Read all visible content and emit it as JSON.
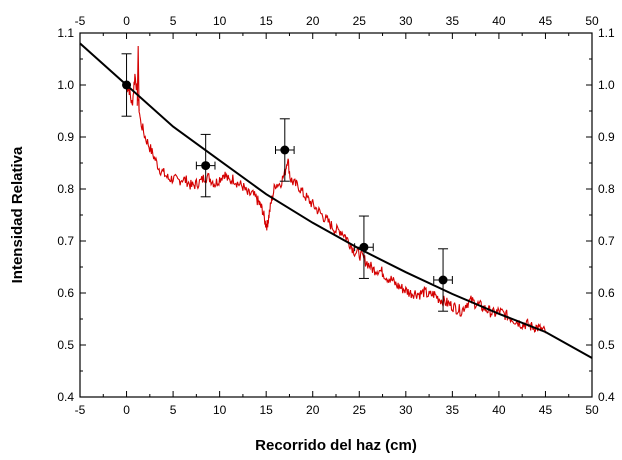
{
  "chart_data": {
    "type": "scatter",
    "title": "",
    "xlabel": "Recorrido del haz (cm)",
    "ylabel": "Intensidad Relativa",
    "xlim": [
      -5,
      50
    ],
    "ylim": [
      0.4,
      1.1
    ],
    "x_ticks": [
      -5,
      0,
      5,
      10,
      15,
      20,
      25,
      30,
      35,
      40,
      45,
      50
    ],
    "x_tick_labels": [
      "-5",
      "0",
      "5",
      "10",
      "15",
      "20",
      "25",
      "30",
      "35",
      "40",
      "45",
      "50"
    ],
    "y_ticks": [
      0.4,
      0.5,
      0.6,
      0.7,
      0.8,
      0.9,
      1.0,
      1.1
    ],
    "y_tick_labels": [
      "0.4",
      "0.5",
      "0.6",
      "0.7",
      "0.8",
      "0.9",
      "1.0",
      "1.1"
    ],
    "grid": false,
    "colors": {
      "measured": "#d40000",
      "fit": "#000000",
      "points": "#000000"
    },
    "series": [
      {
        "kind": "line",
        "x": [
          0.0,
          0.3,
          0.6,
          0.9,
          1.2,
          1.5,
          2,
          2.5,
          3,
          3.5,
          4,
          4.5,
          5,
          5.5,
          6,
          6.5,
          7,
          7.5,
          8,
          8.5,
          9,
          9.5,
          10,
          10.5,
          11,
          11.5,
          12,
          12.5,
          13,
          13.5,
          14,
          14.3,
          14.6,
          14.9,
          15.1,
          15.3,
          15.6,
          16,
          16.5,
          17,
          17.3,
          17.6,
          18,
          18.5,
          19,
          19.5,
          20,
          20.5,
          21,
          21.5,
          22,
          22.5,
          23,
          23.5,
          24,
          24.5,
          25,
          25.5,
          26,
          26.5,
          27,
          27.5,
          28,
          28.5,
          29,
          29.5,
          30,
          30.5,
          31,
          31.5,
          32,
          32.5,
          33,
          33.5,
          34,
          34.5,
          35,
          35.5,
          36,
          36.5,
          37,
          37.5,
          38,
          38.5,
          39,
          39.5,
          40,
          40.5,
          41,
          41.5,
          42,
          42.5,
          43,
          43.5,
          44,
          44.5,
          45
        ],
        "y": [
          1.0,
          0.99,
          0.96,
          1.02,
          0.98,
          0.93,
          0.9,
          0.88,
          0.86,
          0.84,
          0.83,
          0.82,
          0.82,
          0.815,
          0.82,
          0.815,
          0.805,
          0.81,
          0.815,
          0.825,
          0.82,
          0.81,
          0.82,
          0.83,
          0.815,
          0.82,
          0.81,
          0.805,
          0.79,
          0.79,
          0.78,
          0.77,
          0.76,
          0.735,
          0.73,
          0.75,
          0.78,
          0.81,
          0.81,
          0.83,
          0.86,
          0.82,
          0.81,
          0.805,
          0.79,
          0.78,
          0.77,
          0.76,
          0.75,
          0.74,
          0.73,
          0.72,
          0.72,
          0.71,
          0.695,
          0.68,
          0.675,
          0.665,
          0.655,
          0.645,
          0.645,
          0.64,
          0.63,
          0.625,
          0.615,
          0.61,
          0.605,
          0.6,
          0.6,
          0.598,
          0.602,
          0.595,
          0.598,
          0.59,
          0.585,
          0.58,
          0.575,
          0.57,
          0.565,
          0.58,
          0.585,
          0.58,
          0.575,
          0.57,
          0.565,
          0.56,
          0.565,
          0.56,
          0.555,
          0.55,
          0.545,
          0.54,
          0.54,
          0.535,
          0.535,
          0.53,
          0.525
        ]
      },
      {
        "kind": "line",
        "x": [
          -5,
          0,
          5,
          10,
          15,
          20,
          25,
          30,
          35,
          40,
          45,
          50
        ],
        "y": [
          1.08,
          1.0,
          0.92,
          0.855,
          0.79,
          0.735,
          0.685,
          0.64,
          0.598,
          0.56,
          0.525,
          0.475
        ]
      },
      {
        "kind": "points",
        "x": [
          0,
          8.5,
          17,
          25.5,
          34
        ],
        "y": [
          1.0,
          0.845,
          0.875,
          0.688,
          0.625
        ],
        "y_err": [
          0.06,
          0.06,
          0.06,
          0.06,
          0.06
        ],
        "x_err": [
          0,
          1.0,
          1.0,
          1.0,
          1.0
        ]
      }
    ]
  }
}
